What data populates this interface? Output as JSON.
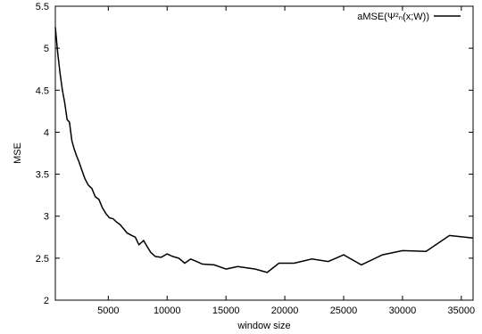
{
  "chart_data": {
    "type": "line",
    "title": "",
    "xlabel": "window size",
    "ylabel": "MSE",
    "xlim": [
      500,
      36000
    ],
    "ylim": [
      2,
      5.5
    ],
    "grid": false,
    "legend_position": "top-right",
    "xticks": [
      5000,
      10000,
      15000,
      20000,
      25000,
      30000,
      35000
    ],
    "yticks": [
      2,
      2.5,
      3,
      3.5,
      4,
      4.5,
      5,
      5.5
    ],
    "xtick_labels": [
      "5000",
      "10000",
      "15000",
      "20000",
      "25000",
      "30000",
      "35000"
    ],
    "ytick_labels": [
      "2",
      "2.5",
      "3",
      "3.5",
      "4",
      "4.5",
      "5",
      "5.5"
    ],
    "series": [
      {
        "name": "aMSE(Ψ²ₙ(x;W))",
        "color": "#000000",
        "x": [
          500,
          700,
          900,
          1100,
          1300,
          1500,
          1700,
          1900,
          2100,
          2300,
          2500,
          2700,
          3000,
          3300,
          3600,
          3900,
          4200,
          4500,
          4800,
          5100,
          5400,
          5700,
          6000,
          6300,
          6600,
          7000,
          7300,
          7600,
          8000,
          8300,
          8600,
          9000,
          9500,
          10000,
          10500,
          11000,
          11500,
          12000,
          12500,
          13000,
          14000,
          15000,
          16000,
          17500,
          18500,
          19500,
          20800,
          22300,
          23700,
          25000,
          26500,
          28300,
          30000,
          32000,
          34000,
          36000
        ],
        "y": [
          5.25,
          4.95,
          4.7,
          4.5,
          4.35,
          4.15,
          4.12,
          3.9,
          3.8,
          3.72,
          3.65,
          3.57,
          3.45,
          3.37,
          3.33,
          3.23,
          3.2,
          3.1,
          3.03,
          2.98,
          2.97,
          2.93,
          2.9,
          2.85,
          2.8,
          2.77,
          2.75,
          2.66,
          2.71,
          2.64,
          2.57,
          2.52,
          2.51,
          2.55,
          2.52,
          2.5,
          2.44,
          2.49,
          2.46,
          2.43,
          2.42,
          2.37,
          2.4,
          2.37,
          2.33,
          2.44,
          2.44,
          2.49,
          2.46,
          2.54,
          2.42,
          2.54,
          2.59,
          2.58,
          2.77,
          2.74
        ]
      }
    ]
  }
}
